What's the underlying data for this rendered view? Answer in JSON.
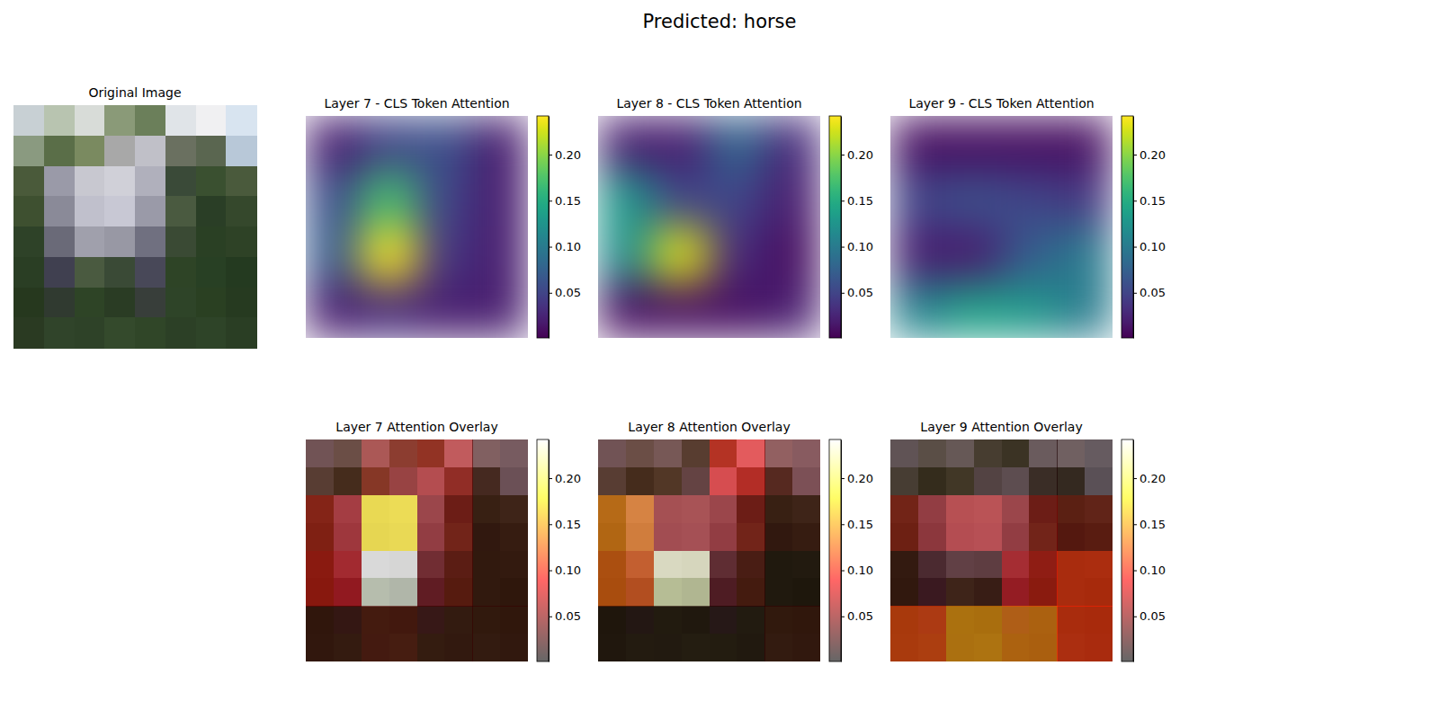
{
  "chart_data": {
    "type": "heatmap",
    "title": "Predicted: horse",
    "image": {
      "title": "Original Image",
      "pixels": [
        [
          "#c8d0d4",
          "#b8c4b0",
          "#d8dcd8",
          "#8a9a78",
          "#6b7f5a",
          "#e0e4e8",
          "#f0f0f2",
          "#d8e4f0"
        ],
        [
          "#8a9a80",
          "#5a6e48",
          "#7a8a60",
          "#a8a8a8",
          "#c0c0c8",
          "#6a7060",
          "#5a6650",
          "#b8c8d8"
        ],
        [
          "#4a5a3a",
          "#9a9aa8",
          "#c8c8d0",
          "#d0d0d8",
          "#b0b0bc",
          "#3a4a38",
          "#3a5030",
          "#4a5a3c"
        ],
        [
          "#3e5030",
          "#8a8a98",
          "#c0c0cc",
          "#c8c8d4",
          "#9a9aa8",
          "#4a5a40",
          "#2a3e26",
          "#35482c"
        ],
        [
          "#2e4228",
          "#6a6a78",
          "#a0a0ac",
          "#9898a4",
          "#707080",
          "#3a4a34",
          "#2a4024",
          "#2e4226"
        ],
        [
          "#2a3e24",
          "#404050",
          "#4a5a40",
          "#3a4a36",
          "#484858",
          "#2e4426",
          "#284024",
          "#243a20"
        ],
        [
          "#26381e",
          "#303a30",
          "#2e4426",
          "#2a3c24",
          "#383e3a",
          "#2e4428",
          "#2a4022",
          "#263a20"
        ],
        [
          "#2a3a22",
          "#30442a",
          "#2e4228",
          "#344a2c",
          "#304628",
          "#2c4026",
          "#2e4428",
          "#2a3e24"
        ]
      ]
    },
    "colorbar": {
      "range": [
        0.001,
        0.242
      ],
      "ticks": [
        0.05,
        {
          "value": 0.1,
          "label": "0.10"
        },
        0.15,
        {
          "value": 0.2,
          "label": "0.20"
        }
      ]
    },
    "layers": [
      {
        "title": "Layer 7 - CLS Token Attention",
        "overlay_title": "Layer 7 Attention Overlay",
        "cells": [
          [
            0.02,
            0.05,
            0.06,
            0.02
          ],
          [
            0.06,
            0.17,
            0.05,
            0.02
          ],
          [
            0.07,
            0.24,
            0.04,
            0.02
          ],
          [
            0.02,
            0.03,
            0.02,
            0.02
          ]
        ]
      },
      {
        "title": "Layer 8 - CLS Token Attention",
        "overlay_title": "Layer 8 Attention Overlay",
        "cells": [
          [
            0.02,
            0.02,
            0.08,
            0.03
          ],
          [
            0.13,
            0.05,
            0.05,
            0.02
          ],
          [
            0.12,
            0.23,
            0.03,
            0.01
          ],
          [
            0.01,
            0.01,
            0.01,
            0.02
          ]
        ]
      },
      {
        "title": "Layer 9 - CLS Token Attention",
        "overlay_title": "Layer 9 Attention Overlay",
        "cells": [
          [
            0.01,
            0.01,
            0.01,
            0.01
          ],
          [
            0.05,
            0.06,
            0.05,
            0.04
          ],
          [
            0.02,
            0.02,
            0.07,
            0.1
          ],
          [
            0.11,
            0.14,
            0.13,
            0.1
          ]
        ]
      }
    ]
  }
}
